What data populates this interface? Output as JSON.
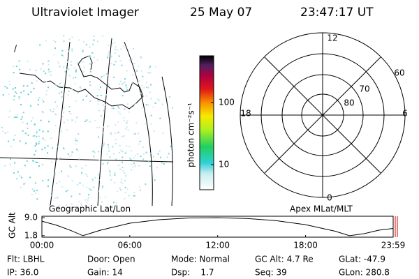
{
  "header": {
    "instrument": "Ultraviolet Imager",
    "date": "25 May 07",
    "time": "23:47:17 UT"
  },
  "map_corner_label": "/",
  "map_label": "Geographic Lat/Lon",
  "polar_label": "Apex MLat/MLT",
  "colorbar": {
    "unit_label": "photon cm⁻²s⁻¹",
    "ticks": [
      "100",
      "10"
    ]
  },
  "polar_plot": {
    "mlt_labels": [
      "12",
      "18",
      "6",
      "0"
    ],
    "mlat_labels": [
      "60",
      "70",
      "80"
    ]
  },
  "chart_data": {
    "type": "line",
    "ylabel": "GC Alt",
    "color": "#000000",
    "x": [
      0,
      1,
      2,
      2.8,
      4,
      6,
      8,
      10,
      12,
      14,
      16,
      18,
      20,
      21,
      22,
      23,
      23.98
    ],
    "values": [
      7.6,
      6.0,
      3.8,
      1.8,
      4.0,
      6.8,
      8.2,
      8.9,
      9.0,
      8.7,
      7.8,
      6.2,
      3.6,
      1.8,
      2.6,
      4.0,
      4.7
    ],
    "xlim": [
      0,
      23.98
    ],
    "xticks": [
      {
        "value": 0,
        "label": "00:00"
      },
      {
        "value": 6,
        "label": "06:00"
      },
      {
        "value": 12,
        "label": "12:00"
      },
      {
        "value": 18,
        "label": "18:00"
      },
      {
        "value": 23.98,
        "label": "23:59"
      }
    ],
    "ylim": [
      1.2,
      9.6
    ],
    "yticks": [
      {
        "value": 9,
        "label": "9.0"
      },
      {
        "value": 1.8,
        "label": "1.8"
      }
    ]
  },
  "footer": {
    "rows": [
      [
        "Flt: LBHL",
        "Door: Open",
        "Mode: Normal",
        "GC Alt: 4.7 Re",
        "GLat: -47.9"
      ],
      [
        "IP: 36.0",
        "Gain: 14",
        "Dsp:    1.7",
        "Seq: 39",
        "GLon: 280.8"
      ]
    ]
  }
}
